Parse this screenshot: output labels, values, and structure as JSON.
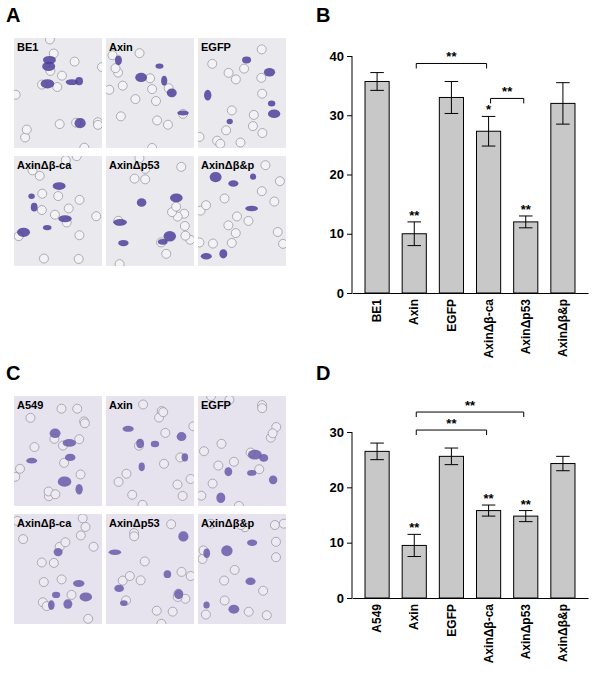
{
  "chart_data": [
    {
      "type": "bar",
      "title": "B",
      "categories": [
        "BE1",
        "Axin",
        "EGFP",
        "AxinΔβ-ca",
        "AxinΔp53",
        "AxinΔβ&p"
      ],
      "values": [
        35.7,
        10,
        33,
        27.3,
        12,
        32
      ],
      "errors": [
        1.5,
        2,
        2.7,
        2.5,
        1,
        3.5
      ],
      "significance": [
        null,
        "**",
        null,
        "*",
        "**",
        null
      ],
      "brackets": [
        {
          "from": "Axin",
          "to": "AxinΔβ-ca",
          "label": "**"
        },
        {
          "from": "AxinΔβ-ca",
          "to": "AxinΔp53",
          "label": "**"
        }
      ],
      "color": "#c8c8c8",
      "ylim": [
        0,
        40
      ],
      "yticks": [
        0,
        10,
        20,
        30,
        40
      ]
    },
    {
      "type": "bar",
      "title": "D",
      "categories": [
        "A549",
        "Axin",
        "EGFP",
        "AxinΔβ-ca",
        "AxinΔp53",
        "AxinΔβ&p"
      ],
      "values": [
        26.5,
        9.5,
        25.6,
        15.8,
        14.8,
        24.3
      ],
      "errors": [
        1.5,
        2,
        1.5,
        1,
        1,
        1.3
      ],
      "significance": [
        null,
        "**",
        null,
        "**",
        "**",
        null
      ],
      "brackets": [
        {
          "from": "Axin",
          "to": "AxinΔβ-ca",
          "label": "**"
        },
        {
          "from": "Axin",
          "to": "AxinΔp53",
          "label": "**"
        }
      ],
      "color": "#c8c8c8",
      "ylim": [
        0,
        30
      ],
      "yticks": [
        0,
        10,
        20,
        30
      ]
    }
  ],
  "image_panels": [
    {
      "label": "A",
      "tiles": [
        "BE1",
        "Axin",
        "EGFP",
        "AxinΔβ-ca",
        "AxinΔp53",
        "AxinΔβ&p"
      ]
    },
    {
      "label": "C",
      "tiles": [
        "A549",
        "Axin",
        "EGFP",
        "AxinΔβ-ca",
        "AxinΔp53",
        "AxinΔβ&p"
      ]
    }
  ]
}
